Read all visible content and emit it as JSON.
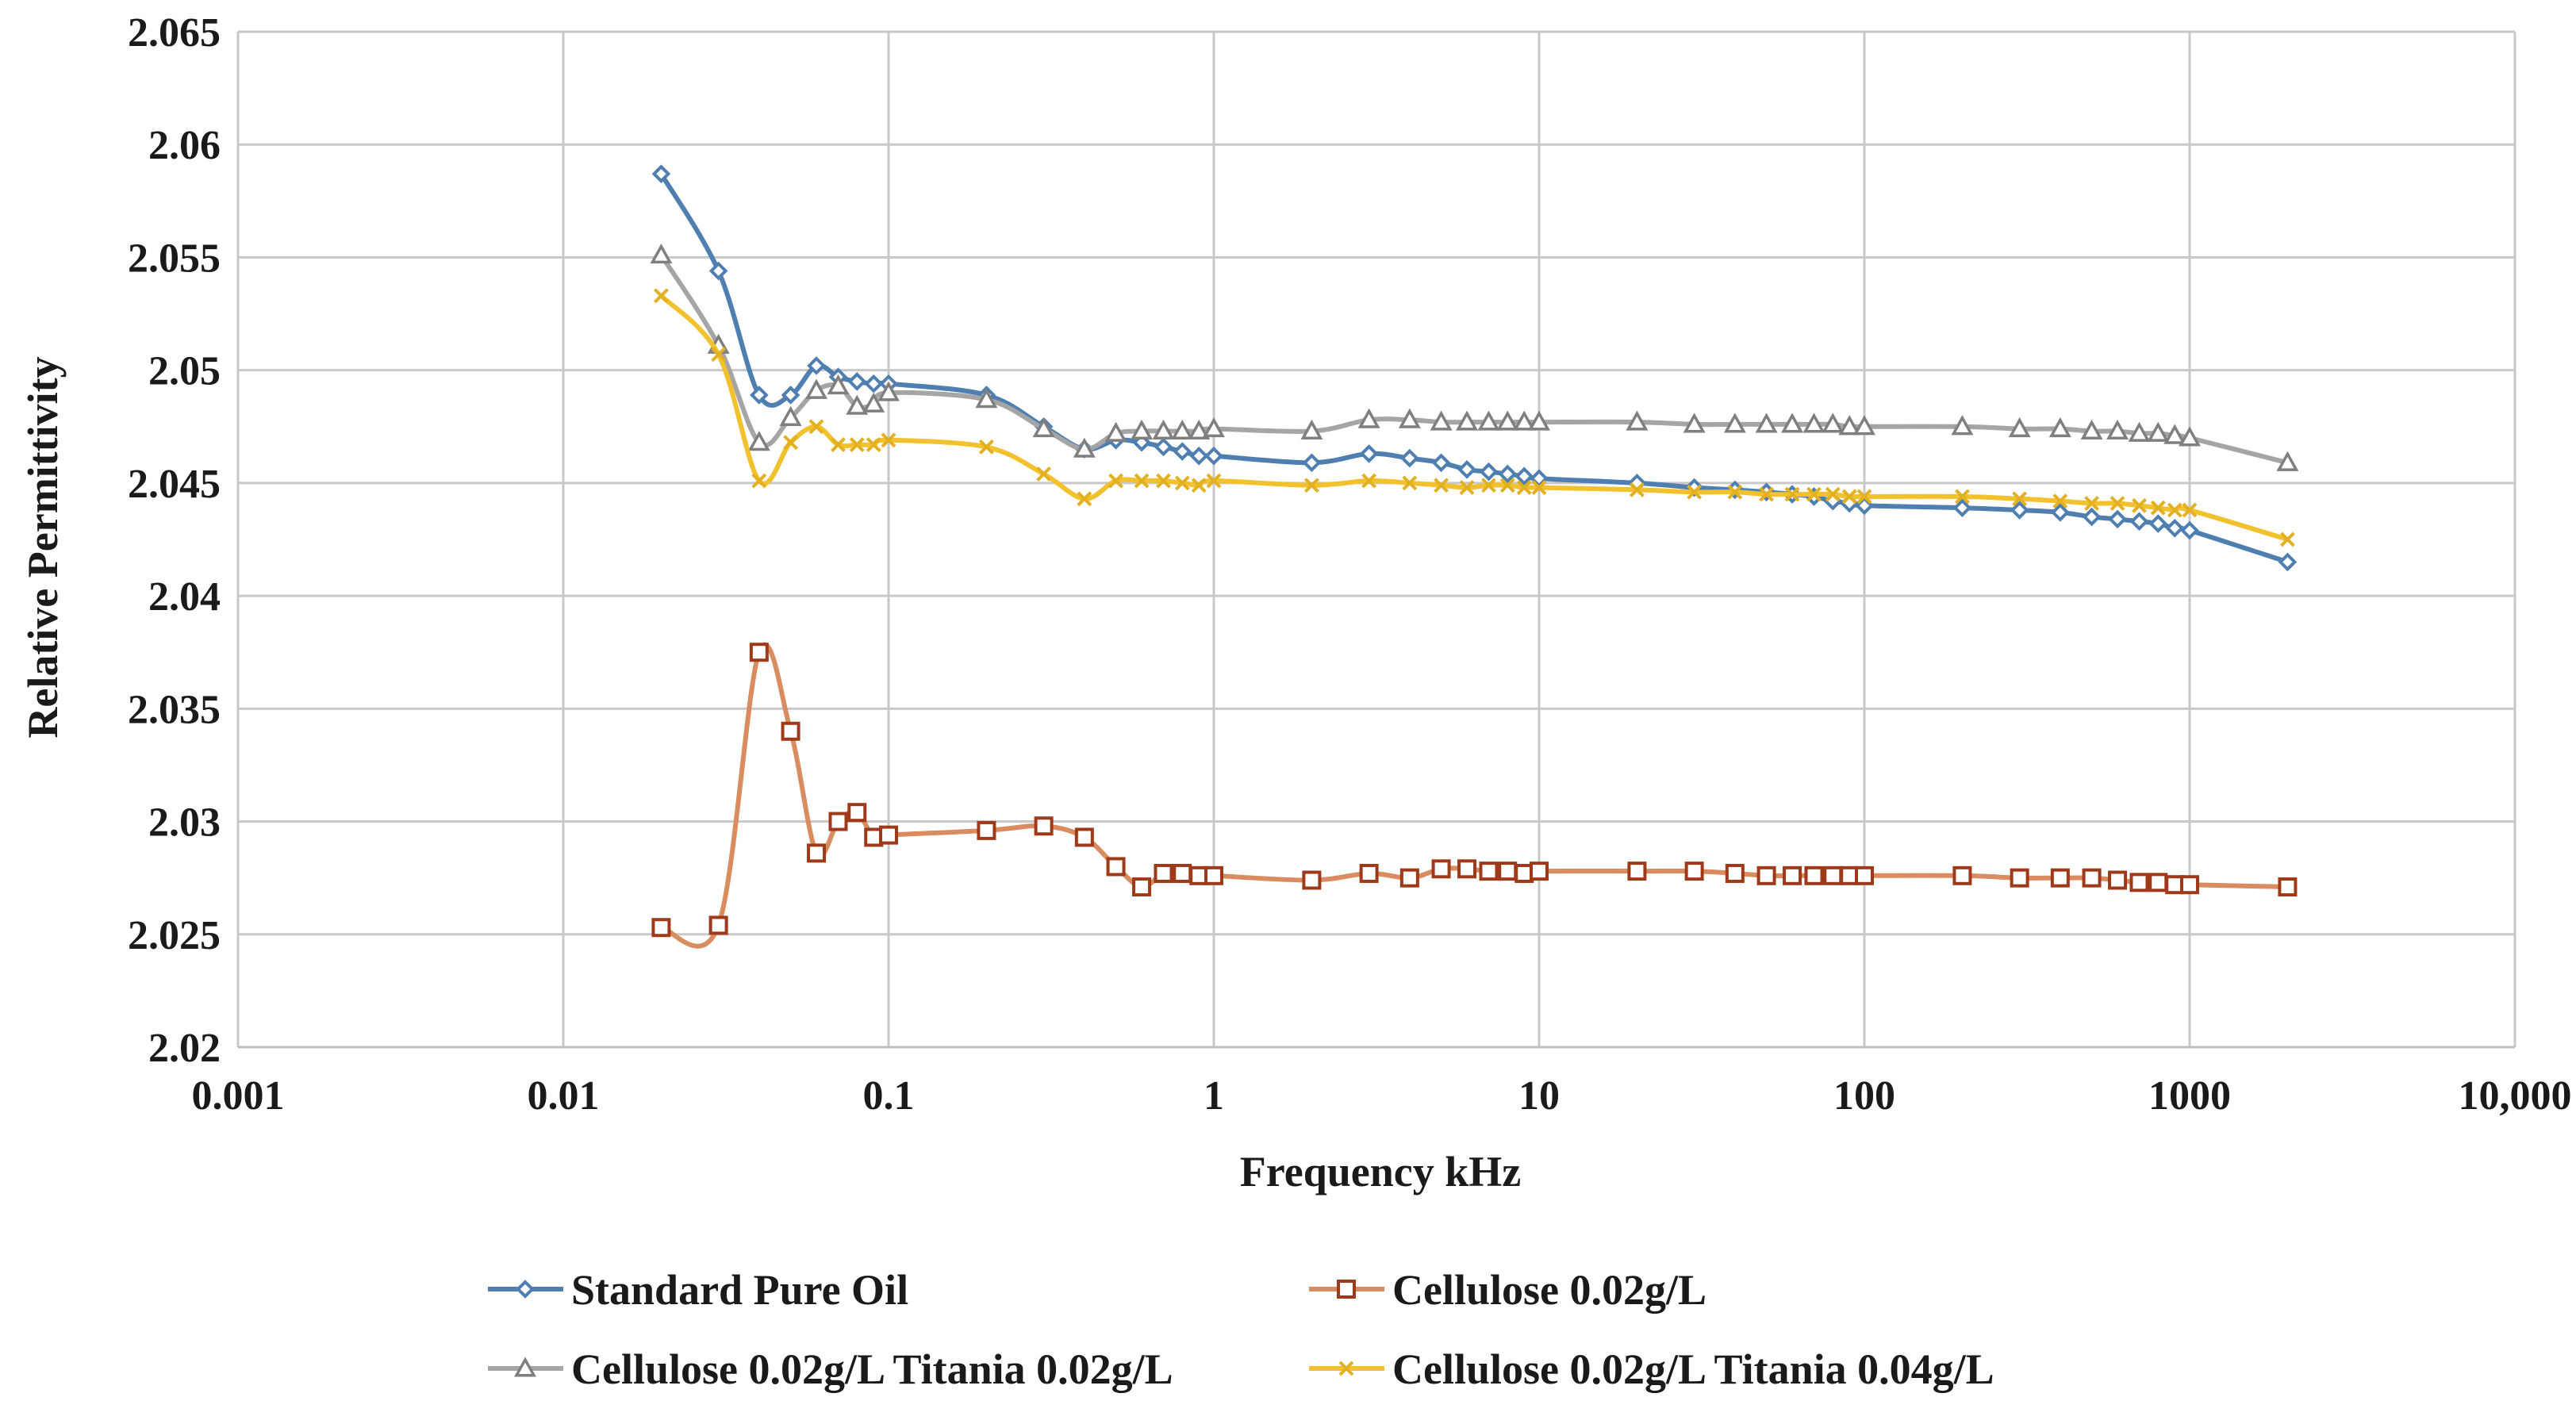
{
  "chart_data": {
    "type": "line",
    "title": "",
    "xlabel": "Frequency kHz",
    "ylabel": "Relative Permittivity",
    "xscale": "log",
    "xlim": [
      0.001,
      10000
    ],
    "ylim": [
      2.02,
      2.065
    ],
    "x_tick_values": [
      0.001,
      0.01,
      0.1,
      1,
      10,
      100,
      1000,
      10000
    ],
    "x_tick_labels": [
      "0.001",
      "0.01",
      "0.1",
      "1",
      "10",
      "100",
      "1000",
      "10,000"
    ],
    "y_tick_values": [
      2.02,
      2.025,
      2.03,
      2.035,
      2.04,
      2.045,
      2.05,
      2.055,
      2.06,
      2.065
    ],
    "y_tick_labels": [
      "2.02",
      "2.025",
      "2.03",
      "2.035",
      "2.04",
      "2.045",
      "2.05",
      "2.055",
      "2.06",
      "2.065"
    ],
    "grid": true,
    "legend_position": "bottom",
    "x": [
      0.02,
      0.03,
      0.04,
      0.05,
      0.06,
      0.07,
      0.08,
      0.09,
      0.1,
      0.2,
      0.3,
      0.4,
      0.5,
      0.6,
      0.7,
      0.8,
      0.9,
      1,
      2,
      3,
      4,
      5,
      6,
      7,
      8,
      9,
      10,
      20,
      30,
      40,
      50,
      60,
      70,
      80,
      90,
      100,
      200,
      300,
      400,
      500,
      600,
      700,
      800,
      900,
      1000,
      2000
    ],
    "series": [
      {
        "name": "Standard Pure Oil",
        "color": "#4f7fb0",
        "marker": "diamond",
        "values": [
          2.0587,
          2.0544,
          2.0489,
          2.0489,
          2.0502,
          2.0497,
          2.0495,
          2.0494,
          2.0494,
          2.0489,
          2.0475,
          2.0465,
          2.0469,
          2.0468,
          2.0466,
          2.0464,
          2.0462,
          2.0462,
          2.0459,
          2.0463,
          2.0461,
          2.0459,
          2.0456,
          2.0455,
          2.0454,
          2.0453,
          2.0452,
          2.045,
          2.0448,
          2.0447,
          2.0446,
          2.0445,
          2.0444,
          2.0442,
          2.0441,
          2.044,
          2.0439,
          2.0438,
          2.0437,
          2.0435,
          2.0434,
          2.0433,
          2.0432,
          2.043,
          2.0429,
          2.0415
        ]
      },
      {
        "name": "Cellulose 0.02g/L",
        "color": "#9e3a1a",
        "line_color": "#d98c5f",
        "marker": "square",
        "values": [
          2.0253,
          2.0254,
          2.0375,
          2.034,
          2.0286,
          2.03,
          2.0304,
          2.0293,
          2.0294,
          2.0296,
          2.0298,
          2.0293,
          2.028,
          2.0271,
          2.0277,
          2.0277,
          2.0276,
          2.0276,
          2.0274,
          2.0277,
          2.0275,
          2.0279,
          2.0279,
          2.0278,
          2.0278,
          2.0277,
          2.0278,
          2.0278,
          2.0278,
          2.0277,
          2.0276,
          2.0276,
          2.0276,
          2.0276,
          2.0276,
          2.0276,
          2.0276,
          2.0275,
          2.0275,
          2.0275,
          2.0274,
          2.0273,
          2.0273,
          2.0272,
          2.0272,
          2.0271
        ]
      },
      {
        "name": "Cellulose 0.02g/L Titania 0.02g/L",
        "color": "#7f7f7f",
        "line_color": "#a5a5a5",
        "marker": "triangle",
        "values": [
          2.0551,
          2.0511,
          2.0468,
          2.0479,
          2.0491,
          2.0493,
          2.0484,
          2.0485,
          2.049,
          2.0487,
          2.0474,
          2.0465,
          2.0472,
          2.0473,
          2.0473,
          2.0473,
          2.0473,
          2.0474,
          2.0473,
          2.0478,
          2.0478,
          2.0477,
          2.0477,
          2.0477,
          2.0477,
          2.0477,
          2.0477,
          2.0477,
          2.0476,
          2.0476,
          2.0476,
          2.0476,
          2.0476,
          2.0476,
          2.0475,
          2.0475,
          2.0475,
          2.0474,
          2.0474,
          2.0473,
          2.0473,
          2.0472,
          2.0472,
          2.0471,
          2.047,
          2.0459
        ]
      },
      {
        "name": "Cellulose 0.02g/L Titania 0.04g/L",
        "color": "#e3b021",
        "line_color": "#f2c12e",
        "marker": "x",
        "values": [
          2.0533,
          2.0507,
          2.0451,
          2.0468,
          2.0475,
          2.0467,
          2.0467,
          2.0467,
          2.0469,
          2.0466,
          2.0454,
          2.0443,
          2.0451,
          2.0451,
          2.0451,
          2.045,
          2.0449,
          2.0451,
          2.0449,
          2.0451,
          2.045,
          2.0449,
          2.0448,
          2.0449,
          2.0449,
          2.0448,
          2.0448,
          2.0447,
          2.0446,
          2.0446,
          2.0445,
          2.0445,
          2.0445,
          2.0445,
          2.0444,
          2.0444,
          2.0444,
          2.0443,
          2.0442,
          2.0441,
          2.0441,
          2.044,
          2.0439,
          2.0438,
          2.0438,
          2.0425
        ]
      }
    ]
  }
}
